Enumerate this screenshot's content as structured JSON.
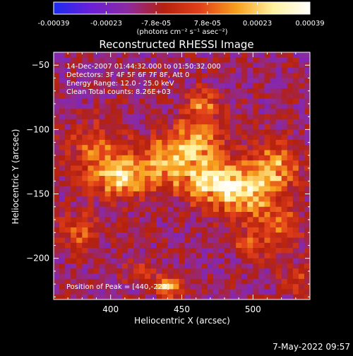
{
  "colorbar": {
    "ticks": [
      "-0.00039",
      "-0.00023",
      "-7.8e-05",
      "7.8e-05",
      "0.00023",
      "0.00039"
    ],
    "tick_values": [
      -0.00039,
      -0.00023,
      -7.8e-05,
      7.8e-05,
      0.00023,
      0.00039
    ],
    "range": [
      -0.00039,
      0.00039
    ],
    "units_label": "(photons cm⁻² s⁻¹ asec⁻²)",
    "colormap": [
      "#1c2bf2",
      "#6a1fd8",
      "#8c2aa3",
      "#b4210f",
      "#e2401a",
      "#f7a01d",
      "#fff2a0",
      "#ffffff"
    ]
  },
  "title": "Reconstructed RHESSI Image",
  "annotations": {
    "time_range": "14-Dec-2007 01:44:32.000 to 01:50:32.000",
    "detectors": "Detectors: 3F 4F 5F 6F 7F 8F, Att 0",
    "energy_range": "Energy Range: 12.0 - 25.0 keV",
    "clean_counts": "Clean     Total counts: 8.26E+03",
    "peak": "Position of Peak = [440,-222]"
  },
  "timestamp": "7-May-2022 09:57",
  "chart_data": {
    "type": "heatmap",
    "title": "Reconstructed RHESSI Image",
    "xlabel": "Heliocentric X (arcsec)",
    "ylabel": "Heliocentric Y (arcsec)",
    "xlim": [
      360,
      540
    ],
    "ylim": [
      -232,
      -40
    ],
    "x_ticks": [
      400,
      450,
      500
    ],
    "y_ticks": [
      -50,
      -100,
      -150,
      -200
    ],
    "x_tick_labels": [
      "400",
      "450",
      "500"
    ],
    "y_tick_labels": [
      "-50",
      "-100",
      "-150",
      "-200"
    ],
    "peak_position": [
      440,
      -222
    ],
    "colorbar_range": [
      -0.00039,
      0.00039
    ],
    "grid_size": [
      45,
      48
    ],
    "hotspots": [
      {
        "x": 390,
        "y": -115,
        "amp": 0.0002,
        "sx": 14,
        "sy": 14
      },
      {
        "x": 408,
        "y": -138,
        "amp": 0.00036,
        "sx": 14,
        "sy": 10
      },
      {
        "x": 435,
        "y": -125,
        "amp": 0.00025,
        "sx": 12,
        "sy": 13
      },
      {
        "x": 460,
        "y": -110,
        "amp": 0.0003,
        "sx": 13,
        "sy": 14
      },
      {
        "x": 465,
        "y": -80,
        "amp": 0.0002,
        "sx": 8,
        "sy": 8
      },
      {
        "x": 470,
        "y": -140,
        "amp": 0.00034,
        "sx": 16,
        "sy": 12
      },
      {
        "x": 495,
        "y": -150,
        "amp": 0.0003,
        "sx": 14,
        "sy": 14
      },
      {
        "x": 515,
        "y": -130,
        "amp": 0.00026,
        "sx": 12,
        "sy": 14
      },
      {
        "x": 520,
        "y": -175,
        "amp": 0.0002,
        "sx": 10,
        "sy": 10
      },
      {
        "x": 500,
        "y": -190,
        "amp": 0.00016,
        "sx": 10,
        "sy": 8
      },
      {
        "x": 378,
        "y": -180,
        "amp": 0.00018,
        "sx": 10,
        "sy": 10
      },
      {
        "x": 440,
        "y": -222,
        "amp": 0.00039,
        "sx": 6,
        "sy": 5
      },
      {
        "x": 420,
        "y": -210,
        "amp": 0.00016,
        "sx": 8,
        "sy": 6
      },
      {
        "x": 530,
        "y": -215,
        "amp": 0.00014,
        "sx": 8,
        "sy": 8
      }
    ],
    "background_level": -0.00012,
    "noise_amplitude": 9e-05
  }
}
